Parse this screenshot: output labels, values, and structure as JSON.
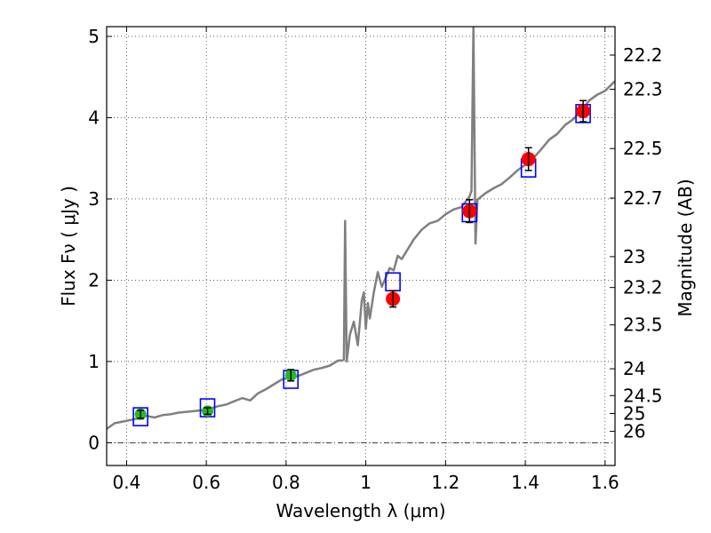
{
  "chart_data": {
    "type": "scatter",
    "xlabel": "Wavelength  λ (μm)",
    "ylabel": "Flux  Fν  ( μJy )",
    "y2label": "Magnitude (AB)",
    "xlim": [
      0.35,
      1.625
    ],
    "ylim": [
      -0.28,
      5.12
    ],
    "grid": true,
    "x_ticks": [
      0.4,
      0.6,
      0.8,
      1,
      1.2,
      1.4,
      1.6
    ],
    "x_tick_labels": [
      "0.4",
      "0.6",
      "0.8",
      "1",
      "1.2",
      "1.4",
      "1.6"
    ],
    "y_ticks": [
      0,
      1,
      2,
      3,
      4,
      5
    ],
    "y_tick_labels": [
      "0",
      "1",
      "2",
      "3",
      "4",
      "5"
    ],
    "mag_ticks": [
      {
        "label": "22.2",
        "flux": 4.77
      },
      {
        "label": "22.3",
        "flux": 4.35
      },
      {
        "label": "22.5",
        "flux": 3.62
      },
      {
        "label": "22.7",
        "flux": 3.01
      },
      {
        "label": "23",
        "flux": 2.29
      },
      {
        "label": "23.2",
        "flux": 1.91
      },
      {
        "label": "23.5",
        "flux": 1.45
      },
      {
        "label": "24",
        "flux": 0.91
      },
      {
        "label": "24.5",
        "flux": 0.58
      },
      {
        "label": "25",
        "flux": 0.36
      },
      {
        "label": "26",
        "flux": 0.14
      }
    ],
    "zero_line": 0,
    "model_spectrum": {
      "color": "#808080",
      "x": [
        0.35,
        0.37,
        0.39,
        0.41,
        0.43,
        0.45,
        0.47,
        0.49,
        0.51,
        0.53,
        0.55,
        0.57,
        0.59,
        0.61,
        0.63,
        0.65,
        0.67,
        0.69,
        0.71,
        0.73,
        0.75,
        0.77,
        0.79,
        0.81,
        0.83,
        0.85,
        0.87,
        0.89,
        0.91,
        0.93,
        0.945,
        0.948,
        0.952,
        0.96,
        0.97,
        0.98,
        0.99,
        0.995,
        1.0,
        1.005,
        1.01,
        1.02,
        1.03,
        1.04,
        1.05,
        1.06,
        1.07,
        1.08,
        1.09,
        1.1,
        1.12,
        1.14,
        1.16,
        1.18,
        1.2,
        1.22,
        1.24,
        1.26,
        1.265,
        1.27,
        1.275,
        1.28,
        1.3,
        1.32,
        1.34,
        1.36,
        1.38,
        1.4,
        1.42,
        1.44,
        1.46,
        1.48,
        1.5,
        1.52,
        1.54,
        1.56,
        1.58,
        1.6,
        1.625
      ],
      "y": [
        0.17,
        0.24,
        0.26,
        0.28,
        0.3,
        0.33,
        0.31,
        0.34,
        0.35,
        0.37,
        0.38,
        0.39,
        0.4,
        0.42,
        0.45,
        0.47,
        0.51,
        0.55,
        0.52,
        0.61,
        0.66,
        0.72,
        0.78,
        0.8,
        0.82,
        0.86,
        0.9,
        0.92,
        0.95,
        1.01,
        1.02,
        2.73,
        1.0,
        1.33,
        1.49,
        1.2,
        1.75,
        1.85,
        1.4,
        1.72,
        1.53,
        1.85,
        2.1,
        1.92,
        2.03,
        2.15,
        2.12,
        2.3,
        2.26,
        2.34,
        2.5,
        2.62,
        2.7,
        2.73,
        2.81,
        2.87,
        2.9,
        3.03,
        3.1,
        5.12,
        2.45,
        2.99,
        3.07,
        3.13,
        3.18,
        3.26,
        3.35,
        3.42,
        3.5,
        3.61,
        3.73,
        3.8,
        3.91,
        3.98,
        4.08,
        4.21,
        4.28,
        4.33,
        4.45
      ]
    },
    "model_boxes": {
      "color": "#0000ff",
      "x": [
        0.435,
        0.603,
        0.812,
        1.068,
        1.26,
        1.408,
        1.545
      ],
      "y": [
        0.32,
        0.43,
        0.78,
        1.98,
        2.83,
        3.38,
        4.05
      ]
    },
    "green_points": {
      "color": "#22bb22",
      "x": [
        0.435,
        0.603,
        0.812
      ],
      "y": [
        0.35,
        0.39,
        0.83
      ],
      "err": [
        0.05,
        0.04,
        0.07
      ]
    },
    "red_points": {
      "color": "#ff0000",
      "x": [
        1.068,
        1.26,
        1.408,
        1.545
      ],
      "y": [
        1.77,
        2.85,
        3.49,
        4.08
      ],
      "err": [
        0.1,
        0.14,
        0.14,
        0.13
      ]
    }
  }
}
